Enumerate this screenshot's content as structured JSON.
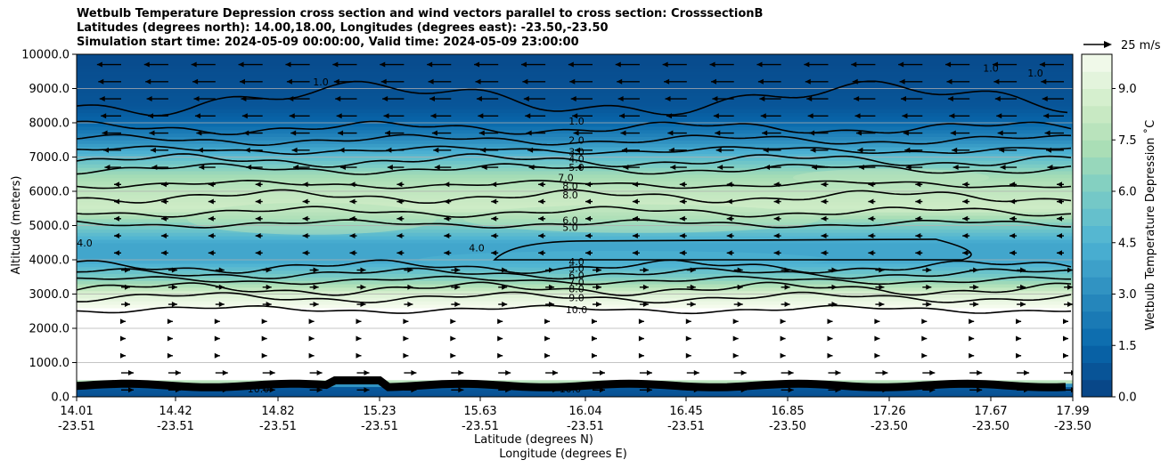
{
  "chart_data": {
    "type": "heatmap",
    "title_lines": [
      "Wetbulb Temperature Depression cross section and wind vectors parallel to cross section: CrosssectionB",
      "Latitudes (degrees north): 14.00,18.00, Longitudes (degrees east): -23.50,-23.50",
      "Simulation start time: 2024-05-09 00:00:00, Valid time: 2024-05-09 23:00:00"
    ],
    "xlabel_lat": "Latitude (degrees N)",
    "xlabel_lon": "Longitude (degrees E)",
    "ylabel": "Altitude (meters)",
    "colorbar_label": "Wetbulb Temperature Depression ˚C",
    "quiver_key": "25 m/s",
    "ylim": [
      0,
      10000
    ],
    "yticks": [
      "0.0",
      "1000.0",
      "2000.0",
      "3000.0",
      "4000.0",
      "5000.0",
      "6000.0",
      "7000.0",
      "8000.0",
      "9000.0",
      "10000.0"
    ],
    "xticks": [
      {
        "lat": "14.01",
        "lon": "-23.51"
      },
      {
        "lat": "14.42",
        "lon": "-23.51"
      },
      {
        "lat": "14.82",
        "lon": "-23.51"
      },
      {
        "lat": "15.23",
        "lon": "-23.51"
      },
      {
        "lat": "15.63",
        "lon": "-23.51"
      },
      {
        "lat": "16.04",
        "lon": "-23.51"
      },
      {
        "lat": "16.45",
        "lon": "-23.51"
      },
      {
        "lat": "16.85",
        "lon": "-23.50"
      },
      {
        "lat": "17.26",
        "lon": "-23.50"
      },
      {
        "lat": "17.67",
        "lon": "-23.50"
      },
      {
        "lat": "17.99",
        "lon": "-23.50"
      }
    ],
    "colorbar_ticks": [
      "0.0",
      "1.5",
      "3.0",
      "4.5",
      "6.0",
      "7.5",
      "9.0"
    ],
    "colorbar_range": [
      0,
      10
    ],
    "profile": {
      "altitude_m": [
        0,
        300,
        500,
        2000,
        2600,
        3000,
        3500,
        4000,
        4500,
        5000,
        5500,
        6000,
        6500,
        7000,
        7500,
        8000,
        8500,
        10000
      ],
      "depression_c": [
        0.5,
        1.0,
        10.0,
        10.0,
        10.0,
        9.0,
        6.0,
        4.0,
        4.0,
        6.0,
        8.5,
        8.0,
        7.0,
        5.0,
        3.0,
        1.5,
        0.8,
        0.4
      ]
    },
    "contour_labels": [
      "1.0",
      "2.0",
      "3.0",
      "4.0",
      "5.0",
      "7.0",
      "8.0",
      "8.0",
      "6.0",
      "5.0",
      "4.0",
      "4.0",
      "5.0",
      "6.0",
      "7.0",
      "8.0",
      "9.0",
      "10.0",
      "4.0",
      "1.0",
      "1.0",
      "1.0",
      "10.0",
      "10.0"
    ],
    "wind": {
      "upper_direction": "westward",
      "lower_direction": "eastward"
    },
    "grid": true
  }
}
